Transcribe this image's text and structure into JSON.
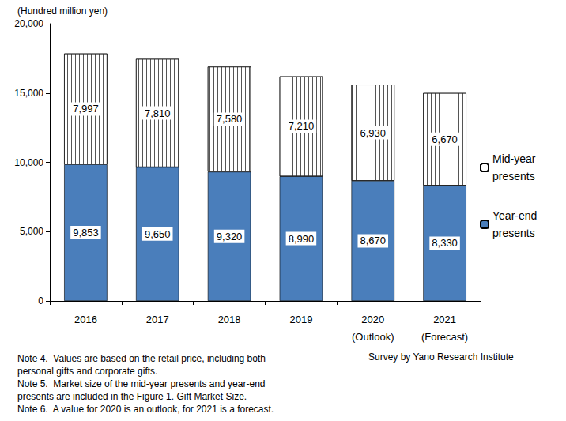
{
  "chart_data": {
    "type": "bar",
    "stacked": true,
    "ylabel": "(Hundred million yen)",
    "categories": [
      "2016",
      "2017",
      "2018",
      "2019",
      "2020\n(Outlook)",
      "2021\n(Forecast)"
    ],
    "series": [
      {
        "name": "Year-end presents",
        "color": "#4a7ebb",
        "values": [
          9853,
          9650,
          9320,
          8990,
          8670,
          8330
        ],
        "value_labels": [
          "9,853",
          "9,650",
          "9,320",
          "8,990",
          "8,670",
          "8,330"
        ]
      },
      {
        "name": "Mid-year presents",
        "color": "#ffffff",
        "values": [
          7997,
          7810,
          7580,
          7210,
          6930,
          6670
        ],
        "value_labels": [
          "7,997",
          "7,810",
          "7,580",
          "7,210",
          "6,930",
          "6,670"
        ]
      }
    ],
    "ylim": [
      0,
      20000
    ],
    "yticks": [
      0,
      {
        "value": 5000,
        "label": "5,000"
      },
      {
        "value": 10000,
        "label": "10,000"
      },
      {
        "value": 15000,
        "label": "15,000"
      },
      {
        "value": 20000,
        "label": "20,000"
      }
    ],
    "grid": false,
    "legend": "right",
    "data_labels": true,
    "annotations": [
      "Note 4.  Values are based on the retail price, including both\npersonal gifts and corporate gifts.\nNote 5.  Market size of the mid-year presents and year-end\npresents are included in the Figure 1. Gift Market Size.\nNote 6.  A value for 2020 is an outlook, for 2021 is a forecast."
    ],
    "source": "Survey by Yano Research Institute"
  }
}
